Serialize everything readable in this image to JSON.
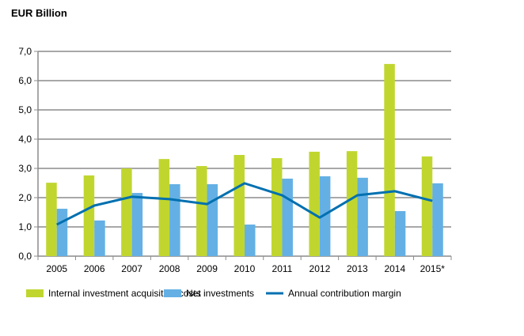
{
  "chart_data": {
    "type": "bar",
    "title": "EUR Billion",
    "categories": [
      "2005",
      "2006",
      "2007",
      "2008",
      "2009",
      "2010",
      "2011",
      "2012",
      "2013",
      "2014",
      "2015*"
    ],
    "ylim": [
      0,
      7
    ],
    "yticks": [
      "0,0",
      "1,0",
      "2,0",
      "3,0",
      "4,0",
      "5,0",
      "6,0",
      "7,0"
    ],
    "grid": true,
    "legend_position": "bottom",
    "series": [
      {
        "name": "Internal investment acquisition costs",
        "kind": "bar",
        "color": "#c0d62f",
        "values": [
          2.51,
          2.76,
          3.0,
          3.32,
          3.08,
          3.46,
          3.35,
          3.57,
          3.59,
          6.57,
          3.41
        ]
      },
      {
        "name": "Net investments",
        "kind": "bar",
        "color": "#64b0e4",
        "values": [
          1.62,
          1.22,
          2.16,
          2.46,
          2.46,
          1.08,
          2.65,
          2.73,
          2.68,
          1.54,
          2.49
        ]
      },
      {
        "name": "Annual contribution margin",
        "kind": "line",
        "color": "#0070b0",
        "values": [
          1.08,
          1.73,
          2.03,
          1.95,
          1.78,
          2.49,
          2.08,
          1.32,
          2.08,
          2.22,
          1.89
        ]
      }
    ]
  }
}
